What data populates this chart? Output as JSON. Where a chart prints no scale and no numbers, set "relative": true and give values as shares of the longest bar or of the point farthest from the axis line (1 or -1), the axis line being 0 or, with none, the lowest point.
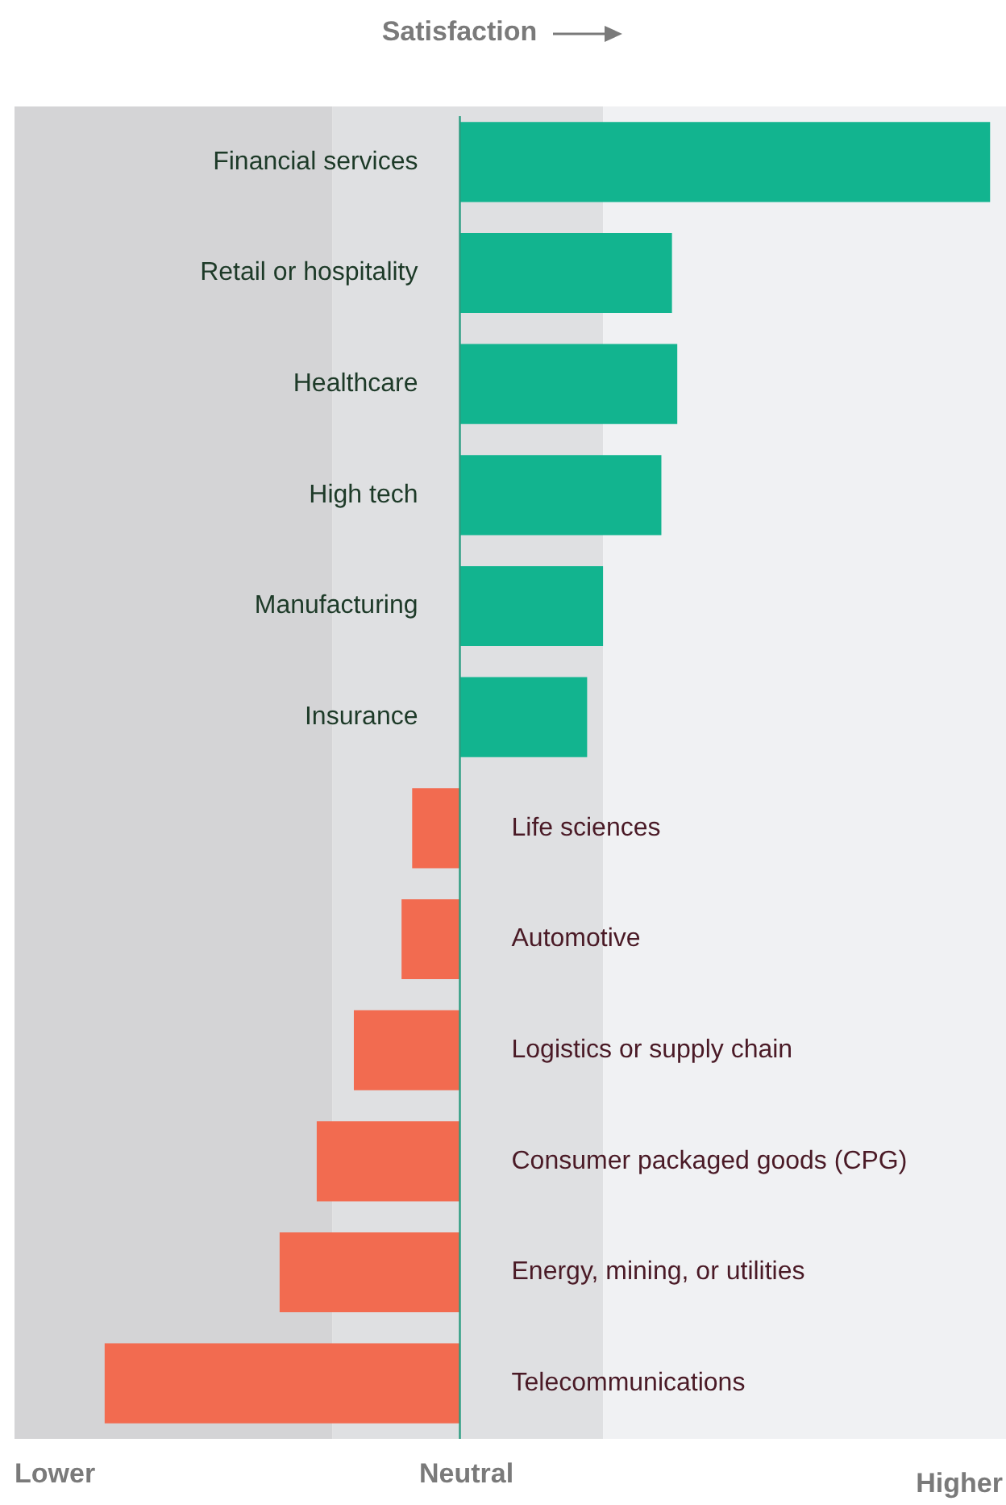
{
  "chart_data": {
    "type": "bar",
    "orientation": "horizontal",
    "relative": true,
    "title": "Satisfaction",
    "categories": [
      "Financial services",
      "Retail or hospitality",
      "Healthcare",
      "High tech",
      "Manufacturing",
      "Insurance",
      "Life sciences",
      "Automotive",
      "Logistics or supply chain",
      "Consumer packaged goods (CPG)",
      "Energy, mining, or utilities",
      "Telecommunications"
    ],
    "values": [
      1,
      0.4,
      0.41,
      0.38,
      0.27,
      0.24,
      -0.09,
      -0.11,
      -0.2,
      -0.27,
      -0.34,
      -0.67
    ],
    "colors": [
      "#12b48f",
      "#12b48f",
      "#12b48f",
      "#12b48f",
      "#12b48f",
      "#12b48f",
      "#f26b50",
      "#f26b50",
      "#f26b50",
      "#f26b50",
      "#f26b50",
      "#f26b50"
    ],
    "bands": [
      {
        "axis": "x",
        "from": -0.84,
        "to": -0.24,
        "color": "#d4d4d6"
      },
      {
        "axis": "x",
        "from": -0.24,
        "to": 0.27,
        "color": "#dfe0e2"
      },
      {
        "axis": "x",
        "from": 0.27,
        "to": 1.03,
        "color": "#f0f1f3"
      }
    ],
    "annotations": [
      "Lower",
      "Neutral",
      "Higher"
    ],
    "legend": false
  }
}
